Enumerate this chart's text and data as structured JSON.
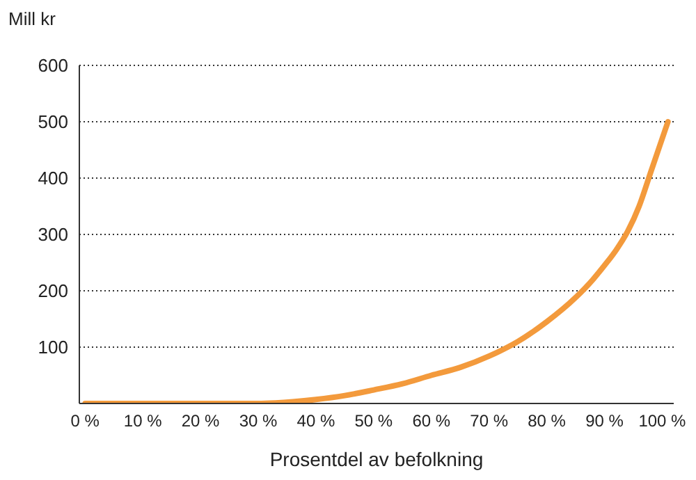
{
  "chart_data": {
    "type": "line",
    "ylabel": "Mill kr",
    "xlabel": "Prosentdel av befolkning",
    "x": [
      0,
      10,
      20,
      30,
      33,
      36,
      40,
      45,
      50,
      55,
      60,
      65,
      70,
      75,
      80,
      85,
      88,
      90,
      92,
      94,
      96,
      98,
      100,
      101
    ],
    "series": [
      {
        "color": "#f39a3c",
        "values": [
          0,
          0,
          0,
          0,
          1,
          3,
          7,
          14,
          24,
          35,
          50,
          64,
          84,
          110,
          145,
          188,
          220,
          245,
          272,
          305,
          350,
          410,
          470,
          500
        ]
      }
    ],
    "xlim": [
      -1,
      102
    ],
    "xticks": [
      {
        "value": 0,
        "label": "0 %"
      },
      {
        "value": 10,
        "label": "10 %"
      },
      {
        "value": 20,
        "label": "20 %"
      },
      {
        "value": 30,
        "label": "30 %"
      },
      {
        "value": 40,
        "label": "40 %"
      },
      {
        "value": 50,
        "label": "50 %"
      },
      {
        "value": 60,
        "label": "60 %"
      },
      {
        "value": 70,
        "label": "70 %"
      },
      {
        "value": 80,
        "label": "80 %"
      },
      {
        "value": 90,
        "label": "90 %"
      },
      {
        "value": 100,
        "label": "100 %"
      }
    ],
    "ylim": [
      0,
      600
    ],
    "yticks": [
      {
        "value": 0,
        "label": null
      },
      100,
      200,
      300,
      400,
      500,
      600
    ],
    "grid": "y",
    "marker": "none",
    "line_style": "solid",
    "legend": false
  }
}
